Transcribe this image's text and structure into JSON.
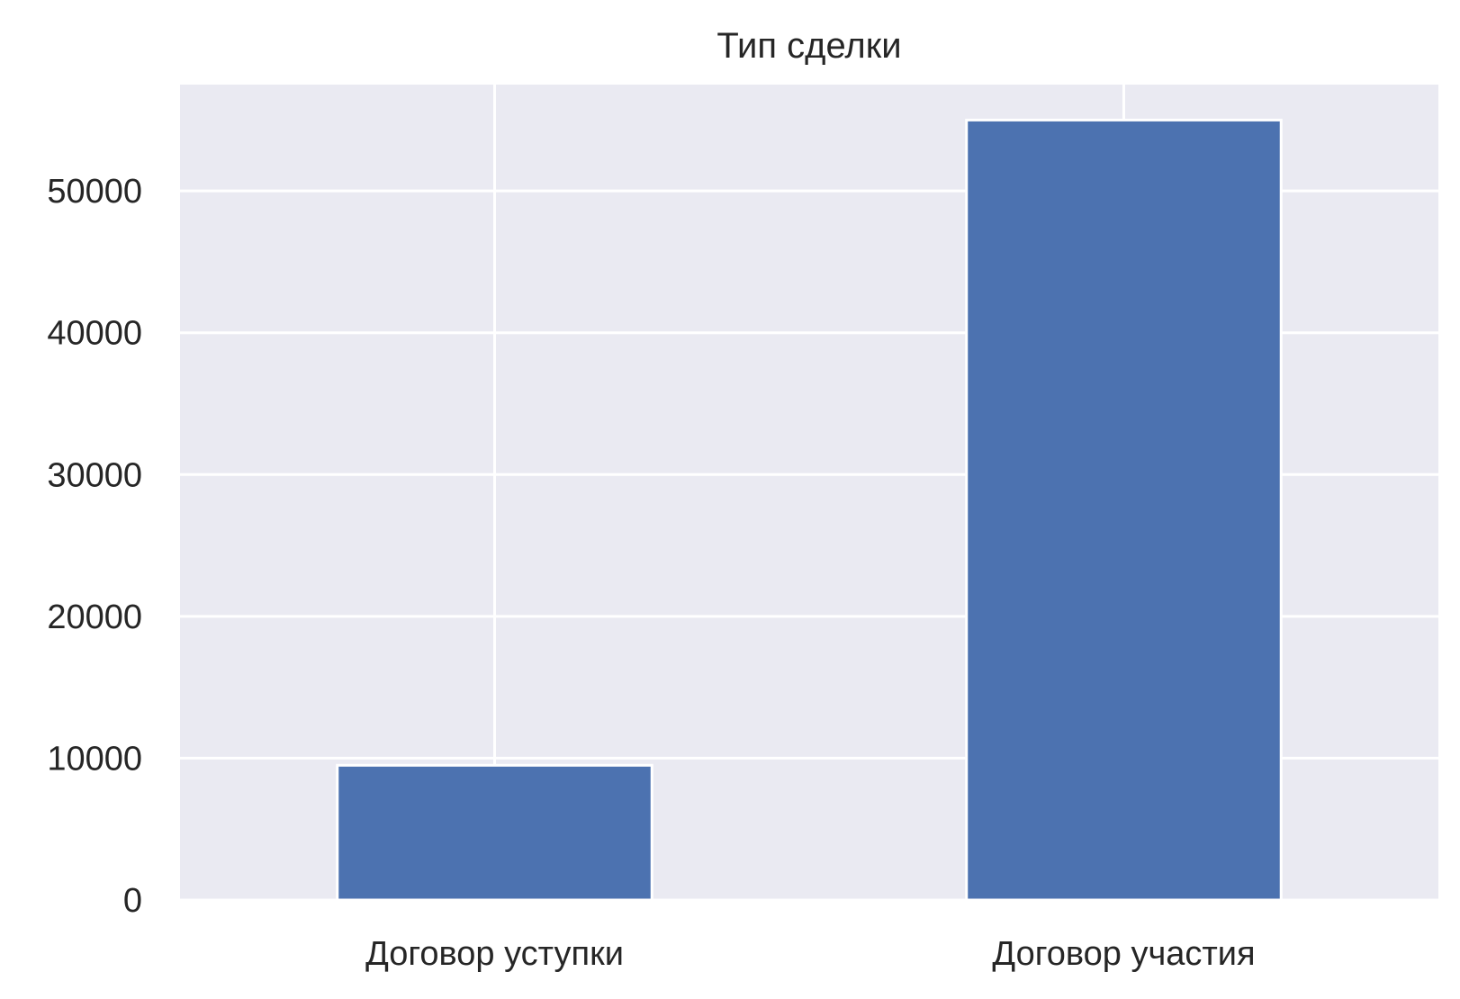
{
  "chart_data": {
    "type": "bar",
    "title": "Тип сделки",
    "categories": [
      "Договор уступки",
      "Договор участия"
    ],
    "values": [
      9500,
      55000
    ],
    "xlabel": "",
    "ylabel": "",
    "ylim": [
      0,
      57500
    ],
    "yticks": [
      0,
      10000,
      20000,
      30000,
      40000,
      50000
    ],
    "ytick_labels": [
      "0",
      "10000",
      "20000",
      "30000",
      "40000",
      "50000"
    ],
    "grid": true,
    "colors": {
      "bar": "#4c72b0",
      "plot_background": "#eaeaf2",
      "grid": "#ffffff",
      "text": "#262626"
    }
  }
}
